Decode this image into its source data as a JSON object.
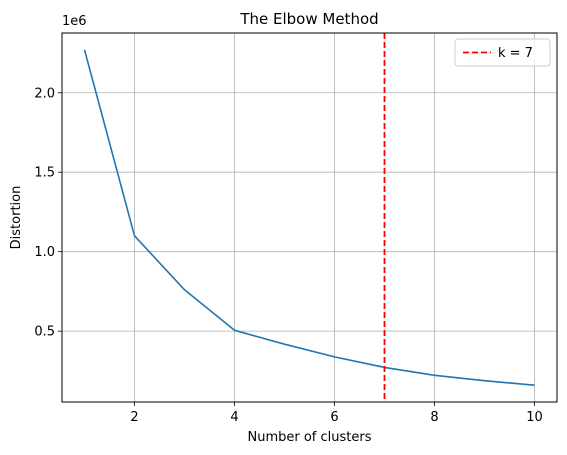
{
  "chart_data": {
    "type": "line",
    "title": "The Elbow Method",
    "xlabel": "Number of clusters",
    "ylabel": "Distortion",
    "y_offset_label": "1e6",
    "x": [
      1,
      2,
      3,
      4,
      5,
      6,
      7,
      8,
      9,
      10
    ],
    "series": [
      {
        "values": [
          2270000,
          1100000,
          760000,
          505000,
          418000,
          338000,
          272000,
          222000,
          188000,
          160000
        ],
        "color": "#1f77b4"
      }
    ],
    "reference_line": {
      "type": "vertical",
      "x": 7,
      "label": "k = 7",
      "color": "#ff0000",
      "style": "dashed"
    },
    "xlim": [
      0.55,
      10.45
    ],
    "ylim": [
      54000,
      2376000
    ],
    "xticks": [
      2,
      4,
      6,
      8,
      10
    ],
    "yticks": [
      500000,
      1000000,
      1500000,
      2000000
    ],
    "ytick_labels": [
      "0.5",
      "1.0",
      "1.5",
      "2.0"
    ],
    "grid": true,
    "legend": {
      "placement": "top-right",
      "entries": [
        "k = 7"
      ]
    }
  }
}
